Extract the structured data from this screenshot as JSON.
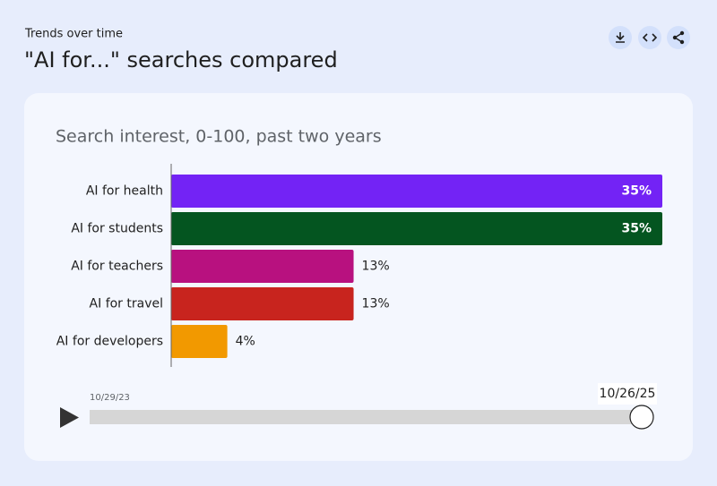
{
  "header": {
    "eyebrow": "Trends over time",
    "title": "\"AI for...\" searches compared"
  },
  "chart_data": {
    "type": "hbar",
    "title": "Search interest, 0-100, past two years",
    "categories": [
      "AI for health",
      "AI for students",
      "AI for teachers",
      "AI for travel",
      "AI for developers"
    ],
    "values": [
      35,
      35,
      13,
      13,
      4
    ],
    "value_labels": [
      "35%",
      "35%",
      "13%",
      "13%",
      "4%"
    ],
    "colors": [
      "#7323f5",
      "#045520",
      "#b8117f",
      "#c8241e",
      "#f29900"
    ]
  },
  "timeline": {
    "start": "10/29/23",
    "end": "10/26/25"
  }
}
